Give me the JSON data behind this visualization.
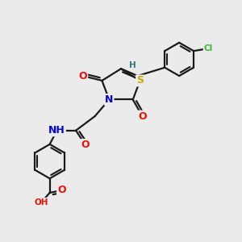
{
  "bg_color": "#ebebeb",
  "bond_color": "#1a1a1a",
  "bond_width": 1.6,
  "atom_colors": {
    "O": "#ee1100",
    "N": "#0000ee",
    "S": "#ccaa00",
    "Cl": "#33bb33",
    "H": "#337777",
    "C": "#1a1a1a"
  },
  "font_size_atom": 9,
  "font_size_small": 7.5
}
